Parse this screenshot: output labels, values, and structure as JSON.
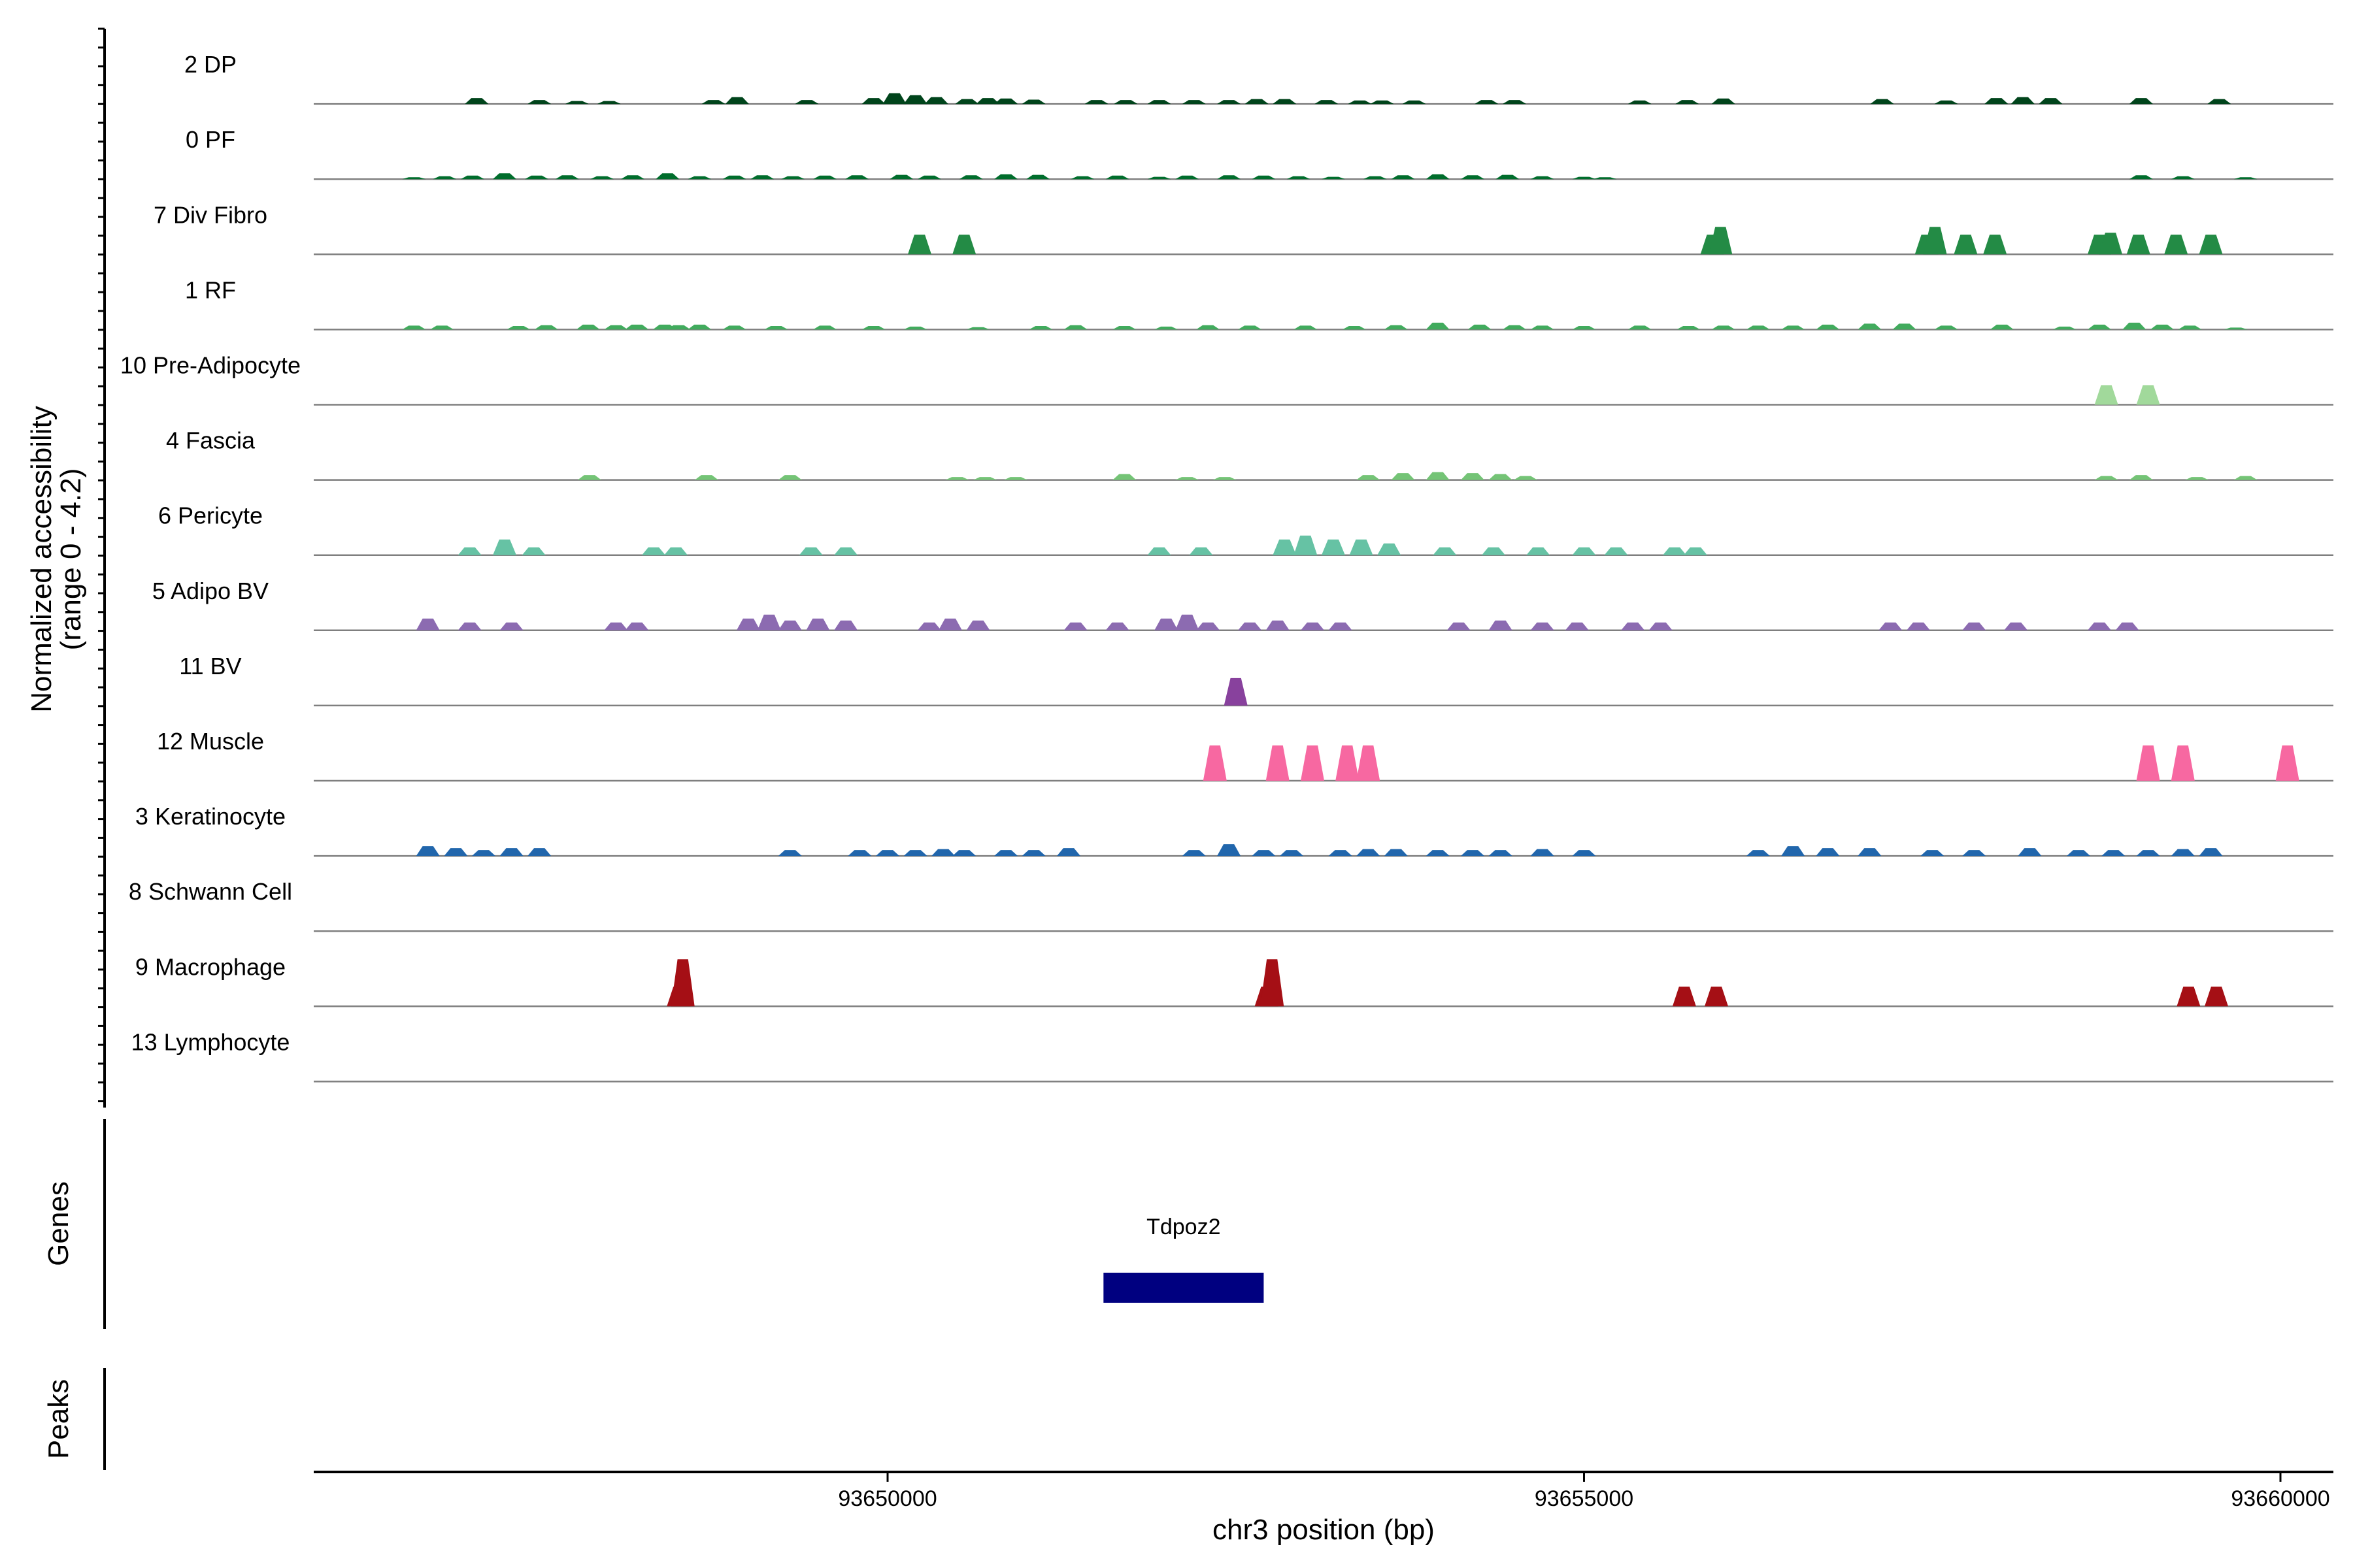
{
  "chart_data": {
    "type": "area",
    "title": "",
    "xlabel": "chr3 position (bp)",
    "ylabel_line1": "Normalized accessibility",
    "ylabel_line2": "(range 0 - 4.2)",
    "y_range": [
      0,
      4.2
    ],
    "x_range": [
      93645880,
      93660380
    ],
    "x_ticks": [
      {
        "value": 93650000,
        "label": "93650000"
      },
      {
        "value": 93655000,
        "label": "93655000"
      },
      {
        "value": 93660000,
        "label": "93660000"
      }
    ],
    "tracks": [
      {
        "name": "2 DP",
        "color": "#00441b",
        "peaks": [
          [
            93647050,
            0.3
          ],
          [
            93647500,
            0.2
          ],
          [
            93647770,
            0.15
          ],
          [
            93648000,
            0.15
          ],
          [
            93648750,
            0.2
          ],
          [
            93648920,
            0.35
          ],
          [
            93649420,
            0.2
          ],
          [
            93649900,
            0.3
          ],
          [
            93650050,
            0.55
          ],
          [
            93650200,
            0.45
          ],
          [
            93650350,
            0.35
          ],
          [
            93650570,
            0.25
          ],
          [
            93650720,
            0.3
          ],
          [
            93650850,
            0.28
          ],
          [
            93651050,
            0.22
          ],
          [
            93651500,
            0.2
          ],
          [
            93651710,
            0.2
          ],
          [
            93651950,
            0.2
          ],
          [
            93652200,
            0.2
          ],
          [
            93652450,
            0.2
          ],
          [
            93652650,
            0.25
          ],
          [
            93652850,
            0.25
          ],
          [
            93653150,
            0.2
          ],
          [
            93653390,
            0.18
          ],
          [
            93653550,
            0.18
          ],
          [
            93653780,
            0.18
          ],
          [
            93654300,
            0.2
          ],
          [
            93654500,
            0.2
          ],
          [
            93655400,
            0.18
          ],
          [
            93655740,
            0.2
          ],
          [
            93656000,
            0.28
          ],
          [
            93657140,
            0.25
          ],
          [
            93657600,
            0.18
          ],
          [
            93657960,
            0.3
          ],
          [
            93658150,
            0.35
          ],
          [
            93658350,
            0.3
          ],
          [
            93659000,
            0.3
          ],
          [
            93659560,
            0.25
          ]
        ]
      },
      {
        "name": "0 PF",
        "color": "#006d2c",
        "peaks": [
          [
            93646600,
            0.1
          ],
          [
            93646820,
            0.15
          ],
          [
            93647020,
            0.18
          ],
          [
            93647250,
            0.3
          ],
          [
            93647480,
            0.18
          ],
          [
            93647700,
            0.2
          ],
          [
            93647950,
            0.15
          ],
          [
            93648170,
            0.2
          ],
          [
            93648420,
            0.3
          ],
          [
            93648650,
            0.15
          ],
          [
            93648900,
            0.18
          ],
          [
            93649100,
            0.2
          ],
          [
            93649320,
            0.15
          ],
          [
            93649550,
            0.18
          ],
          [
            93649780,
            0.2
          ],
          [
            93650100,
            0.22
          ],
          [
            93650300,
            0.18
          ],
          [
            93650600,
            0.2
          ],
          [
            93650850,
            0.25
          ],
          [
            93651080,
            0.22
          ],
          [
            93651400,
            0.15
          ],
          [
            93651650,
            0.18
          ],
          [
            93651950,
            0.12
          ],
          [
            93652150,
            0.18
          ],
          [
            93652450,
            0.2
          ],
          [
            93652700,
            0.18
          ],
          [
            93652950,
            0.15
          ],
          [
            93653200,
            0.12
          ],
          [
            93653500,
            0.15
          ],
          [
            93653700,
            0.2
          ],
          [
            93653950,
            0.25
          ],
          [
            93654200,
            0.2
          ],
          [
            93654450,
            0.22
          ],
          [
            93654700,
            0.15
          ],
          [
            93655000,
            0.12
          ],
          [
            93655150,
            0.1
          ],
          [
            93659000,
            0.2
          ],
          [
            93659300,
            0.15
          ],
          [
            93659750,
            0.1
          ]
        ]
      },
      {
        "name": "7 Div Fibro",
        "color": "#238b45",
        "peaks": [
          [
            93650230,
            1.0
          ],
          [
            93650550,
            1.0
          ],
          [
            93655920,
            1.0
          ],
          [
            93655980,
            1.4
          ],
          [
            93657460,
            1.0
          ],
          [
            93657520,
            1.4
          ],
          [
            93657740,
            1.0
          ],
          [
            93657950,
            1.0
          ],
          [
            93658700,
            1.0
          ],
          [
            93658780,
            1.1
          ],
          [
            93658980,
            1.0
          ],
          [
            93659250,
            1.0
          ],
          [
            93659500,
            1.0
          ]
        ]
      },
      {
        "name": "1 RF",
        "color": "#41ab5d",
        "peaks": [
          [
            93646600,
            0.2
          ],
          [
            93646800,
            0.2
          ],
          [
            93647350,
            0.18
          ],
          [
            93647550,
            0.22
          ],
          [
            93647850,
            0.25
          ],
          [
            93648050,
            0.22
          ],
          [
            93648200,
            0.25
          ],
          [
            93648400,
            0.25
          ],
          [
            93648500,
            0.22
          ],
          [
            93648650,
            0.25
          ],
          [
            93648900,
            0.2
          ],
          [
            93649200,
            0.18
          ],
          [
            93649550,
            0.2
          ],
          [
            93649900,
            0.18
          ],
          [
            93650200,
            0.15
          ],
          [
            93650650,
            0.12
          ],
          [
            93651100,
            0.18
          ],
          [
            93651350,
            0.22
          ],
          [
            93651700,
            0.18
          ],
          [
            93652000,
            0.15
          ],
          [
            93652300,
            0.22
          ],
          [
            93652600,
            0.2
          ],
          [
            93653000,
            0.2
          ],
          [
            93653350,
            0.18
          ],
          [
            93653650,
            0.22
          ],
          [
            93653950,
            0.35
          ],
          [
            93654250,
            0.25
          ],
          [
            93654500,
            0.22
          ],
          [
            93654700,
            0.2
          ],
          [
            93655000,
            0.18
          ],
          [
            93655400,
            0.2
          ],
          [
            93655750,
            0.18
          ],
          [
            93656000,
            0.2
          ],
          [
            93656250,
            0.2
          ],
          [
            93656500,
            0.2
          ],
          [
            93656750,
            0.25
          ],
          [
            93657050,
            0.3
          ],
          [
            93657300,
            0.3
          ],
          [
            93657600,
            0.2
          ],
          [
            93658000,
            0.25
          ],
          [
            93658450,
            0.15
          ],
          [
            93658700,
            0.25
          ],
          [
            93658950,
            0.35
          ],
          [
            93659150,
            0.25
          ],
          [
            93659350,
            0.2
          ],
          [
            93659680,
            0.1
          ]
        ]
      },
      {
        "name": "10 Pre-Adipocyte",
        "color": "#a1d99b",
        "peaks": [
          [
            93658750,
            1.0
          ],
          [
            93659050,
            1.0
          ]
        ]
      },
      {
        "name": "4 Fascia",
        "color": "#74c476",
        "peaks": [
          [
            93647860,
            0.25
          ],
          [
            93648700,
            0.25
          ],
          [
            93649300,
            0.25
          ],
          [
            93650500,
            0.15
          ],
          [
            93650700,
            0.15
          ],
          [
            93650920,
            0.15
          ],
          [
            93651700,
            0.3
          ],
          [
            93652150,
            0.15
          ],
          [
            93652420,
            0.15
          ],
          [
            93653450,
            0.25
          ],
          [
            93653700,
            0.35
          ],
          [
            93653950,
            0.4
          ],
          [
            93654200,
            0.35
          ],
          [
            93654400,
            0.3
          ],
          [
            93654580,
            0.2
          ],
          [
            93658750,
            0.2
          ],
          [
            93659000,
            0.25
          ],
          [
            93659400,
            0.15
          ],
          [
            93659750,
            0.2
          ]
        ]
      },
      {
        "name": "6 Pericyte",
        "color": "#66c2a4",
        "peaks": [
          [
            93647000,
            0.4
          ],
          [
            93647250,
            0.8
          ],
          [
            93647460,
            0.4
          ],
          [
            93648320,
            0.4
          ],
          [
            93648480,
            0.4
          ],
          [
            93649450,
            0.4
          ],
          [
            93649700,
            0.4
          ],
          [
            93651950,
            0.4
          ],
          [
            93652250,
            0.4
          ],
          [
            93652850,
            0.8
          ],
          [
            93653000,
            1.0
          ],
          [
            93653200,
            0.8
          ],
          [
            93653400,
            0.8
          ],
          [
            93653600,
            0.6
          ],
          [
            93654000,
            0.4
          ],
          [
            93654350,
            0.4
          ],
          [
            93654670,
            0.4
          ],
          [
            93655000,
            0.4
          ],
          [
            93655230,
            0.4
          ],
          [
            93655650,
            0.4
          ],
          [
            93655800,
            0.4
          ]
        ]
      },
      {
        "name": "5 Adipo BV",
        "color": "#8c6bb1",
        "peaks": [
          [
            93646700,
            0.6
          ],
          [
            93647000,
            0.4
          ],
          [
            93647300,
            0.4
          ],
          [
            93648050,
            0.4
          ],
          [
            93648200,
            0.4
          ],
          [
            93649000,
            0.6
          ],
          [
            93649150,
            0.8
          ],
          [
            93649300,
            0.5
          ],
          [
            93649500,
            0.6
          ],
          [
            93649700,
            0.5
          ],
          [
            93650300,
            0.4
          ],
          [
            93650450,
            0.6
          ],
          [
            93650650,
            0.5
          ],
          [
            93651350,
            0.4
          ],
          [
            93651650,
            0.4
          ],
          [
            93652000,
            0.6
          ],
          [
            93652150,
            0.8
          ],
          [
            93652300,
            0.4
          ],
          [
            93652600,
            0.4
          ],
          [
            93652800,
            0.5
          ],
          [
            93653050,
            0.4
          ],
          [
            93653250,
            0.4
          ],
          [
            93654100,
            0.4
          ],
          [
            93654400,
            0.5
          ],
          [
            93654700,
            0.4
          ],
          [
            93654950,
            0.4
          ],
          [
            93655350,
            0.4
          ],
          [
            93655550,
            0.4
          ],
          [
            93657200,
            0.4
          ],
          [
            93657400,
            0.4
          ],
          [
            93657800,
            0.4
          ],
          [
            93658100,
            0.4
          ],
          [
            93658700,
            0.4
          ],
          [
            93658900,
            0.4
          ]
        ]
      },
      {
        "name": "11 BV",
        "color": "#88419d",
        "peaks": [
          [
            93652500,
            1.4
          ]
        ]
      },
      {
        "name": "12 Muscle",
        "color": "#f768a1",
        "peaks": [
          [
            93652350,
            1.8
          ],
          [
            93652800,
            1.8
          ],
          [
            93653050,
            1.8
          ],
          [
            93653300,
            1.8
          ],
          [
            93653450,
            1.8
          ],
          [
            93659050,
            1.8
          ],
          [
            93659300,
            1.8
          ],
          [
            93660050,
            1.8
          ]
        ]
      },
      {
        "name": "3 Keratinocyte",
        "color": "#2166ac",
        "peaks": [
          [
            93646700,
            0.5
          ],
          [
            93646900,
            0.4
          ],
          [
            93647100,
            0.3
          ],
          [
            93647300,
            0.4
          ],
          [
            93647500,
            0.4
          ],
          [
            93649300,
            0.3
          ],
          [
            93649800,
            0.3
          ],
          [
            93650000,
            0.3
          ],
          [
            93650200,
            0.3
          ],
          [
            93650400,
            0.35
          ],
          [
            93650550,
            0.3
          ],
          [
            93650850,
            0.3
          ],
          [
            93651050,
            0.3
          ],
          [
            93651300,
            0.4
          ],
          [
            93652200,
            0.3
          ],
          [
            93652450,
            0.6
          ],
          [
            93652700,
            0.3
          ],
          [
            93652900,
            0.3
          ],
          [
            93653250,
            0.3
          ],
          [
            93653450,
            0.35
          ],
          [
            93653650,
            0.35
          ],
          [
            93653950,
            0.3
          ],
          [
            93654200,
            0.3
          ],
          [
            93654400,
            0.3
          ],
          [
            93654700,
            0.35
          ],
          [
            93655000,
            0.3
          ],
          [
            93656250,
            0.3
          ],
          [
            93656500,
            0.5
          ],
          [
            93656750,
            0.4
          ],
          [
            93657050,
            0.4
          ],
          [
            93657500,
            0.3
          ],
          [
            93657800,
            0.3
          ],
          [
            93658200,
            0.4
          ],
          [
            93658550,
            0.3
          ],
          [
            93658800,
            0.3
          ],
          [
            93659050,
            0.3
          ],
          [
            93659300,
            0.35
          ],
          [
            93659500,
            0.4
          ]
        ]
      },
      {
        "name": "8 Schwann Cell",
        "color": "#08519c",
        "peaks": []
      },
      {
        "name": "9 Macrophage",
        "color": "#a50f15",
        "peaks": [
          [
            93648500,
            1.0
          ],
          [
            93648530,
            2.4
          ],
          [
            93652720,
            1.0
          ],
          [
            93652760,
            2.4
          ],
          [
            93655720,
            1.0
          ],
          [
            93655950,
            1.0
          ],
          [
            93659340,
            1.0
          ],
          [
            93659540,
            1.0
          ]
        ]
      },
      {
        "name": "13 Lymphocyte",
        "color": "#252525",
        "peaks": []
      }
    ],
    "genes_label": "Genes",
    "genes": [
      {
        "name": "Tdpoz2",
        "start": 93651550,
        "end": 93652700,
        "color": "#000080"
      }
    ],
    "peaks_label": "Peaks"
  }
}
